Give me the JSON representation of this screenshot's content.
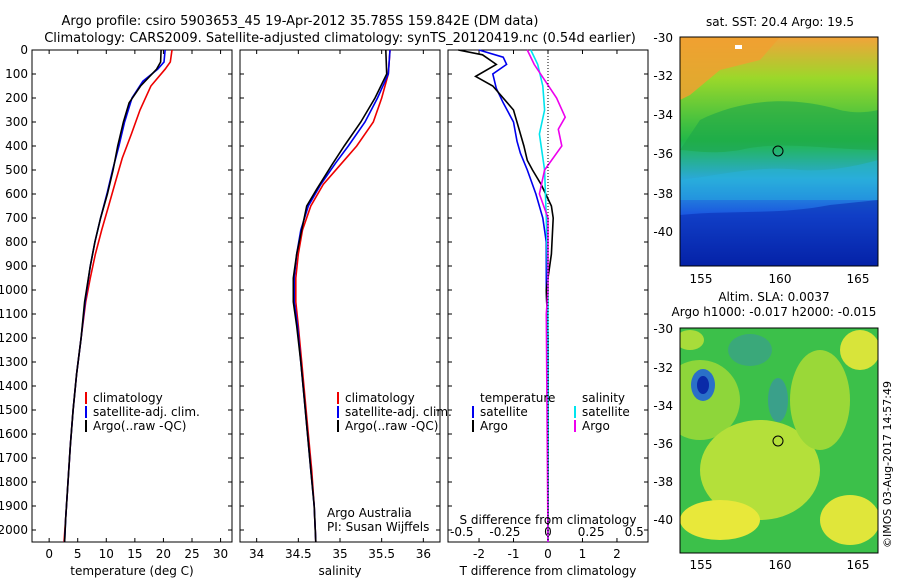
{
  "header": {
    "title_line1": "Argo profile: csiro 5903653_45 19-Apr-2012 35.785S 159.842E (DM data)",
    "title_line2": "Climatology: CARS2009. Satellite-adjusted climatology: synTS_20120419.nc (0.54d earlier)"
  },
  "legend_temperature": [
    "climatology",
    "satellite-adj. clim.",
    "Argo(..raw -QC)"
  ],
  "legend_salinity": [
    "climatology",
    "satellite-adj. clim.",
    "Argo(..raw -QC)"
  ],
  "legend_diff": {
    "temperature_heading": "temperature",
    "salinity_heading": "salinity",
    "t_satellite": "satellite",
    "t_argo": "Argo",
    "s_satellite": "satellite",
    "s_argo": "Argo"
  },
  "credits": {
    "line1": "Argo Australia",
    "line2": "PI: Susan Wijffels"
  },
  "sst_map": {
    "title": "sat. SST: 20.4  Argo: 19.5",
    "lat_ticks": [
      "-30",
      "-32",
      "-34",
      "-36",
      "-38",
      "-40"
    ],
    "lon_ticks": [
      "155",
      "160",
      "165"
    ]
  },
  "sla_map": {
    "title_line1": "Altim. SLA: 0.0037",
    "title_line2": "Argo h1000: -0.017 h2000: -0.015",
    "lat_ticks": [
      "-30",
      "-32",
      "-34",
      "-36",
      "-38",
      "-40"
    ],
    "lon_ticks": [
      "155",
      "160",
      "165"
    ]
  },
  "watermark": "©IMOS 03-Aug-2017 14:57:49",
  "colors": {
    "climatology": "#ee0000",
    "satellite": "#0000ee",
    "argo": "#000000",
    "s_satellite": "#00e5ee",
    "s_argo": "#ee00ee"
  },
  "chart_data": [
    {
      "type": "line",
      "title": "",
      "xlabel": "temperature (deg C)",
      "ylabel": "",
      "xlim": [
        -3,
        32
      ],
      "ylim": [
        2050,
        0
      ],
      "x_ticks": [
        "0",
        "5",
        "10",
        "15",
        "20",
        "25",
        "30"
      ],
      "y_ticks": [
        "0",
        "100",
        "200",
        "300",
        "400",
        "500",
        "600",
        "700",
        "800",
        "900",
        "1000",
        "1100",
        "1200",
        "1300",
        "1400",
        "1500",
        "1600",
        "1700",
        "1800",
        "1900",
        "2000"
      ],
      "series": [
        {
          "name": "climatology",
          "color": "climatology",
          "points": [
            [
              21.5,
              0
            ],
            [
              21.2,
              50
            ],
            [
              20.3,
              80
            ],
            [
              17.8,
              150
            ],
            [
              15.9,
              250
            ],
            [
              14.4,
              350
            ],
            [
              12.8,
              450
            ],
            [
              11.6,
              550
            ],
            [
              10.4,
              650
            ],
            [
              9.2,
              750
            ],
            [
              8.1,
              850
            ],
            [
              7.2,
              950
            ],
            [
              6.4,
              1050
            ],
            [
              5.6,
              1200
            ],
            [
              4.8,
              1350
            ],
            [
              4.2,
              1500
            ],
            [
              3.7,
              1650
            ],
            [
              3.3,
              1800
            ],
            [
              2.9,
              1950
            ],
            [
              2.6,
              2050
            ]
          ]
        },
        {
          "name": "satellite-adj. clim.",
          "color": "satellite",
          "points": [
            [
              20.3,
              0
            ],
            [
              20.1,
              50
            ],
            [
              19.0,
              80
            ],
            [
              16.4,
              130
            ],
            [
              14.5,
              200
            ],
            [
              13.2,
              300
            ],
            [
              12.2,
              400
            ],
            [
              11.1,
              500
            ],
            [
              10.1,
              600
            ],
            [
              9.0,
              700
            ],
            [
              8.0,
              800
            ],
            [
              7.2,
              900
            ],
            [
              6.3,
              1050
            ],
            [
              5.6,
              1200
            ],
            [
              4.8,
              1350
            ],
            [
              4.2,
              1500
            ],
            [
              3.7,
              1650
            ],
            [
              3.3,
              1800
            ],
            [
              2.9,
              1950
            ],
            [
              2.7,
              2050
            ]
          ]
        },
        {
          "name": "Argo(..raw -QC)",
          "color": "argo",
          "points": [
            [
              19.6,
              0
            ],
            [
              19.5,
              50
            ],
            [
              18.8,
              80
            ],
            [
              16.0,
              150
            ],
            [
              14.0,
              220
            ],
            [
              13.0,
              300
            ],
            [
              12.0,
              400
            ],
            [
              11.2,
              500
            ],
            [
              10.2,
              600
            ],
            [
              9.0,
              700
            ],
            [
              8.0,
              800
            ],
            [
              7.2,
              900
            ],
            [
              6.2,
              1050
            ],
            [
              5.6,
              1200
            ],
            [
              4.8,
              1350
            ],
            [
              4.2,
              1500
            ],
            [
              3.7,
              1650
            ],
            [
              3.3,
              1800
            ],
            [
              2.9,
              1950
            ],
            [
              2.7,
              2050
            ]
          ]
        }
      ]
    },
    {
      "type": "line",
      "title": "",
      "xlabel": "salinity",
      "ylabel": "",
      "xlim": [
        33.8,
        36.2
      ],
      "ylim": [
        2050,
        0
      ],
      "x_ticks": [
        "34",
        "34.5",
        "35",
        "35.5",
        "36"
      ],
      "series": [
        {
          "name": "climatology",
          "color": "climatology",
          "points": [
            [
              35.6,
              0
            ],
            [
              35.58,
              100
            ],
            [
              35.5,
              200
            ],
            [
              35.4,
              300
            ],
            [
              35.2,
              400
            ],
            [
              35.0,
              480
            ],
            [
              34.8,
              560
            ],
            [
              34.65,
              650
            ],
            [
              34.55,
              750
            ],
            [
              34.5,
              850
            ],
            [
              34.47,
              950
            ],
            [
              34.47,
              1050
            ],
            [
              34.5,
              1150
            ],
            [
              34.54,
              1300
            ],
            [
              34.58,
              1450
            ],
            [
              34.62,
              1600
            ],
            [
              34.66,
              1750
            ],
            [
              34.69,
              1900
            ],
            [
              34.71,
              2050
            ]
          ]
        },
        {
          "name": "satellite-adj. clim.",
          "color": "satellite",
          "points": [
            [
              35.6,
              0
            ],
            [
              35.58,
              100
            ],
            [
              35.45,
              200
            ],
            [
              35.3,
              300
            ],
            [
              35.1,
              400
            ],
            [
              34.95,
              470
            ],
            [
              34.77,
              560
            ],
            [
              34.62,
              650
            ],
            [
              34.53,
              750
            ],
            [
              34.48,
              850
            ],
            [
              34.45,
              950
            ],
            [
              34.45,
              1050
            ],
            [
              34.49,
              1150
            ],
            [
              34.53,
              1300
            ],
            [
              34.57,
              1450
            ],
            [
              34.61,
              1600
            ],
            [
              34.65,
              1750
            ],
            [
              34.69,
              1900
            ],
            [
              34.71,
              2050
            ]
          ]
        },
        {
          "name": "Argo(..raw -QC)",
          "color": "argo",
          "points": [
            [
              35.55,
              0
            ],
            [
              35.56,
              100
            ],
            [
              35.42,
              200
            ],
            [
              35.25,
              300
            ],
            [
              35.05,
              400
            ],
            [
              34.9,
              480
            ],
            [
              34.72,
              580
            ],
            [
              34.6,
              650
            ],
            [
              34.54,
              750
            ],
            [
              34.48,
              850
            ],
            [
              34.44,
              950
            ],
            [
              34.44,
              1050
            ],
            [
              34.48,
              1150
            ],
            [
              34.53,
              1300
            ],
            [
              34.57,
              1450
            ],
            [
              34.61,
              1600
            ],
            [
              34.65,
              1750
            ],
            [
              34.69,
              1900
            ],
            [
              34.71,
              2050
            ]
          ]
        }
      ]
    },
    {
      "type": "line",
      "title": "",
      "xlabel": "T difference from climatology",
      "x2label": "S difference from climatology",
      "ylabel": "",
      "xlim": [
        -2.9,
        2.9
      ],
      "ylim": [
        2050,
        0
      ],
      "x_ticks": [
        "-2",
        "-1",
        "0",
        "1",
        "2"
      ],
      "x2_ticks": [
        "-0.5",
        "-0.25",
        "0",
        "0.25",
        "0.5"
      ],
      "series": [
        {
          "name": "T satellite",
          "color": "satellite",
          "axis": "T",
          "points": [
            [
              -2.0,
              0
            ],
            [
              -1.3,
              30
            ],
            [
              -1.2,
              60
            ],
            [
              -1.6,
              100
            ],
            [
              -1.5,
              160
            ],
            [
              -1.3,
              220
            ],
            [
              -1.0,
              300
            ],
            [
              -0.9,
              380
            ],
            [
              -0.8,
              430
            ],
            [
              -0.6,
              500
            ],
            [
              -0.35,
              600
            ],
            [
              -0.15,
              700
            ],
            [
              -0.05,
              800
            ],
            [
              -0.05,
              1000
            ],
            [
              0.0,
              1200
            ],
            [
              0.0,
              2050
            ]
          ]
        },
        {
          "name": "T Argo",
          "color": "argo",
          "axis": "T",
          "points": [
            [
              -2.6,
              0
            ],
            [
              -1.9,
              20
            ],
            [
              -1.5,
              60
            ],
            [
              -2.1,
              110
            ],
            [
              -1.6,
              150
            ],
            [
              -1.0,
              250
            ],
            [
              -0.7,
              400
            ],
            [
              -0.6,
              460
            ],
            [
              -0.45,
              500
            ],
            [
              -0.2,
              560
            ],
            [
              0.1,
              650
            ],
            [
              0.15,
              700
            ],
            [
              0.1,
              850
            ],
            [
              -0.05,
              1000
            ],
            [
              0.0,
              1200
            ],
            [
              0.0,
              2050
            ]
          ]
        },
        {
          "name": "S satellite",
          "color": "s_satellite",
          "axis": "S",
          "points": [
            [
              -0.1,
              0
            ],
            [
              -0.06,
              60
            ],
            [
              -0.03,
              150
            ],
            [
              -0.02,
              250
            ],
            [
              -0.05,
              350
            ],
            [
              -0.02,
              500
            ],
            [
              -0.01,
              700
            ],
            [
              0.0,
              1000
            ],
            [
              0.0,
              2050
            ]
          ]
        },
        {
          "name": "S Argo",
          "color": "s_argo",
          "axis": "S",
          "points": [
            [
              -0.12,
              0
            ],
            [
              -0.08,
              60
            ],
            [
              0.05,
              200
            ],
            [
              0.1,
              280
            ],
            [
              0.06,
              330
            ],
            [
              0.08,
              400
            ],
            [
              -0.02,
              500
            ],
            [
              -0.05,
              600
            ],
            [
              0.0,
              700
            ],
            [
              0.0,
              1000
            ],
            [
              -0.01,
              1100
            ],
            [
              0.0,
              2050
            ]
          ]
        }
      ]
    }
  ]
}
